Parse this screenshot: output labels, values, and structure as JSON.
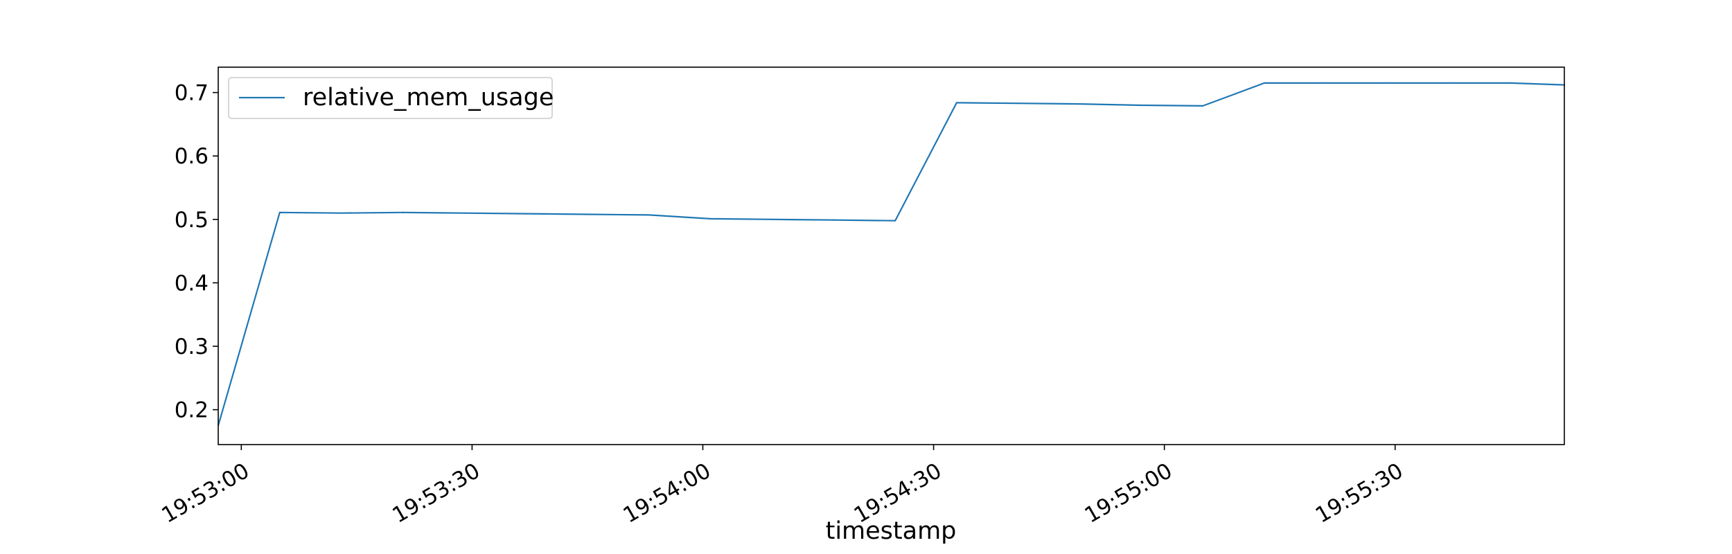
{
  "chart_data": {
    "type": "line",
    "title": "",
    "xlabel": "timestamp",
    "ylabel": "",
    "x_unit": "time",
    "xlim": [
      "19:52:57",
      "19:55:52"
    ],
    "ylim": [
      0.145,
      0.74
    ],
    "xticks": [
      "19:53:00",
      "19:53:30",
      "19:54:00",
      "19:54:30",
      "19:55:00",
      "19:55:30"
    ],
    "yticks": [
      "0.2",
      "0.3",
      "0.4",
      "0.5",
      "0.6",
      "0.7"
    ],
    "grid": false,
    "legend": {
      "position": "upper-left"
    },
    "series": [
      {
        "name": "relative_mem_usage",
        "color": "#1f77b4",
        "x": [
          "19:52:57",
          "19:53:05",
          "19:53:13",
          "19:53:21",
          "19:53:29",
          "19:53:37",
          "19:53:45",
          "19:53:53",
          "19:54:01",
          "19:54:09",
          "19:54:17",
          "19:54:25",
          "19:54:33",
          "19:54:41",
          "19:54:49",
          "19:54:57",
          "19:55:05",
          "19:55:13",
          "19:55:21",
          "19:55:29",
          "19:55:37",
          "19:55:45",
          "19:55:52"
        ],
        "values": [
          0.175,
          0.511,
          0.51,
          0.511,
          0.51,
          0.509,
          0.508,
          0.507,
          0.501,
          0.5,
          0.499,
          0.498,
          0.684,
          0.683,
          0.682,
          0.68,
          0.679,
          0.715,
          0.715,
          0.715,
          0.715,
          0.715,
          0.712
        ]
      }
    ]
  }
}
